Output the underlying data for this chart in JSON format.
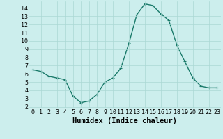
{
  "x": [
    0,
    1,
    2,
    3,
    4,
    5,
    6,
    7,
    8,
    9,
    10,
    11,
    12,
    13,
    14,
    15,
    16,
    17,
    18,
    19,
    20,
    21,
    22,
    23
  ],
  "y": [
    6.5,
    6.3,
    5.7,
    5.5,
    5.3,
    3.3,
    2.5,
    2.7,
    3.5,
    5.0,
    5.5,
    6.7,
    9.7,
    13.2,
    14.5,
    14.3,
    13.3,
    12.5,
    9.5,
    7.5,
    5.5,
    4.5,
    4.3,
    4.3
  ],
  "line_color": "#1a7a6a",
  "marker": "+",
  "marker_size": 3,
  "marker_edge_width": 0.8,
  "bg_color": "#cceeed",
  "grid_color": "#aad8d4",
  "xlabel": "Humidex (Indice chaleur)",
  "ylim": [
    1.8,
    14.8
  ],
  "xlim": [
    -0.5,
    23.5
  ],
  "yticks": [
    2,
    3,
    4,
    5,
    6,
    7,
    8,
    9,
    10,
    11,
    12,
    13,
    14
  ],
  "xticks": [
    0,
    1,
    2,
    3,
    4,
    5,
    6,
    7,
    8,
    9,
    10,
    11,
    12,
    13,
    14,
    15,
    16,
    17,
    18,
    19,
    20,
    21,
    22,
    23
  ],
  "tick_fontsize": 6,
  "xlabel_fontsize": 7.5,
  "line_width": 1.0
}
